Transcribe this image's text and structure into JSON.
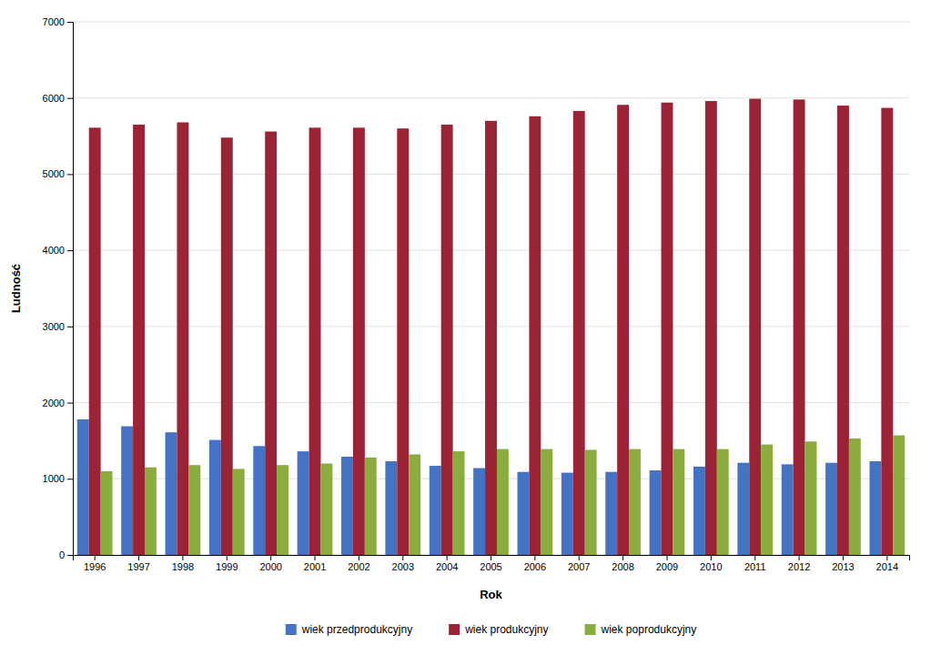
{
  "chart_data": {
    "type": "bar",
    "xlabel": "Rok",
    "ylabel": "Ludność",
    "categories": [
      "1996",
      "1997",
      "1998",
      "1999",
      "2000",
      "2001",
      "2002",
      "2003",
      "2004",
      "2005",
      "2006",
      "2007",
      "2008",
      "2009",
      "2010",
      "2011",
      "2012",
      "2013",
      "2014"
    ],
    "series": [
      {
        "name": "wiek przedprodukcyjny",
        "color": "#4472C4",
        "values": [
          1780,
          1690,
          1610,
          1510,
          1430,
          1360,
          1290,
          1230,
          1170,
          1140,
          1090,
          1080,
          1090,
          1110,
          1160,
          1210,
          1190,
          1210,
          1230
        ]
      },
      {
        "name": "wiek produkcyjny",
        "color": "#9B2335",
        "values": [
          5610,
          5650,
          5680,
          5480,
          5560,
          5610,
          5610,
          5600,
          5650,
          5700,
          5760,
          5830,
          5910,
          5940,
          5960,
          5990,
          5980,
          5900,
          5870
        ]
      },
      {
        "name": "wiek poprodukcyjny",
        "color": "#8AAD3D",
        "values": [
          1100,
          1150,
          1180,
          1130,
          1180,
          1200,
          1280,
          1320,
          1360,
          1390,
          1390,
          1380,
          1390,
          1390,
          1390,
          1450,
          1490,
          1530,
          1570
        ]
      }
    ],
    "ylim": [
      0,
      7000
    ],
    "yticks": [
      0,
      1000,
      2000,
      3000,
      4000,
      5000,
      6000,
      7000
    ],
    "grid": true,
    "legend": "bottom"
  }
}
